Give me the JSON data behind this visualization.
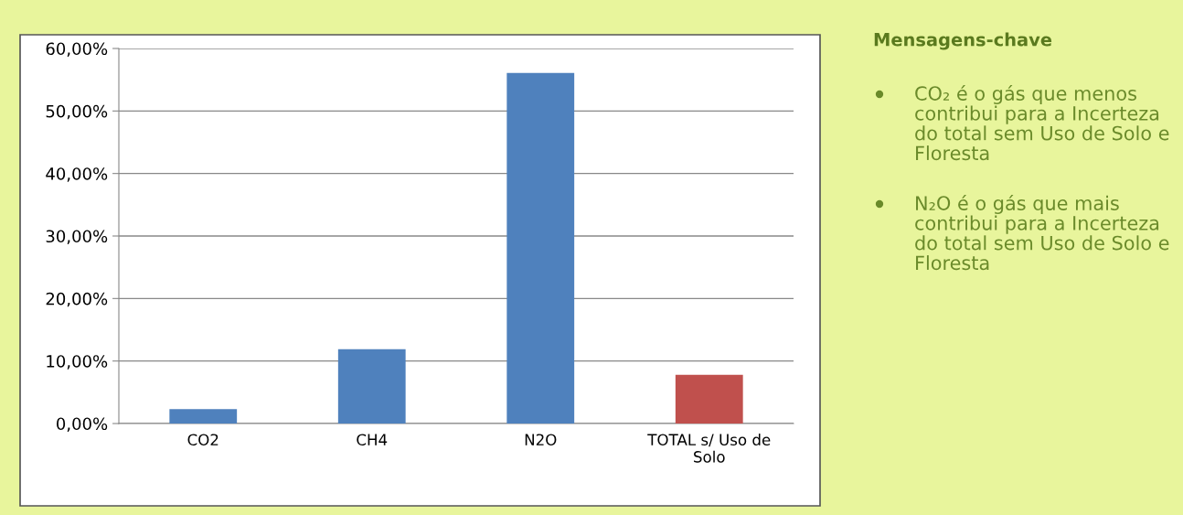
{
  "chart_data": {
    "type": "bar",
    "categories": [
      "CO2",
      "CH4",
      "N2O",
      "TOTAL s/ Uso de\nSolo"
    ],
    "values": [
      2.3,
      11.9,
      56.1,
      7.8
    ],
    "colors": [
      "#4f81bd",
      "#4f81bd",
      "#4f81bd",
      "#c0504d"
    ],
    "ylim": [
      0,
      60
    ],
    "yticks": [
      {
        "value": 0,
        "label": "0,00%"
      },
      {
        "value": 10,
        "label": "10,00%"
      },
      {
        "value": 20,
        "label": "20,00%"
      },
      {
        "value": 30,
        "label": "30,00%"
      },
      {
        "value": 40,
        "label": "40,00%"
      },
      {
        "value": 50,
        "label": "50,00%"
      },
      {
        "value": 60,
        "label": "60,00%"
      }
    ],
    "grid": "y",
    "annotations": [
      "Mensagens-chave",
      "CO₂ é o gás que menos contribui para a Incerteza do total sem Uso de Solo e Floresta",
      "N₂O é o gás que mais contribui para a Incerteza do total sem Uso de Solo e Floresta"
    ]
  }
}
